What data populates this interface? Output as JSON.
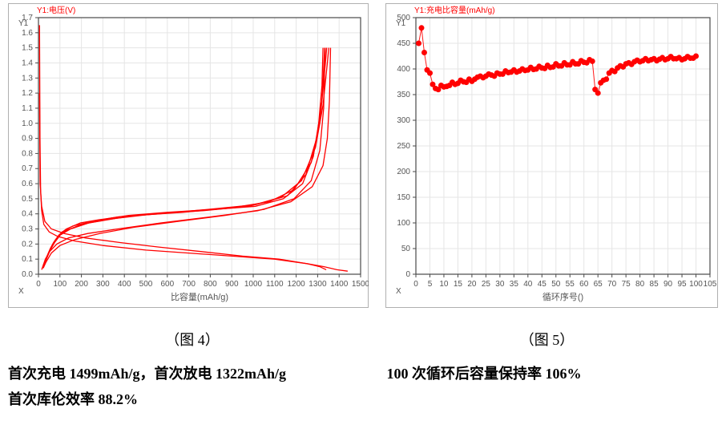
{
  "chart_left": {
    "type": "line",
    "legend_label": "Y1:电压(V)",
    "legend_color": "#ff0000",
    "y_inner_label": "Y1",
    "x_inner_label": "X",
    "x_axis_title": "比容量(mAh/g)",
    "title_fontsize": 11,
    "colors": {
      "line": "#ff0000",
      "grid": "#e5e5e5",
      "axis": "#4a4a4a",
      "tick_label": "#555555",
      "bg": "#ffffff",
      "border": "#b0b0b0"
    },
    "xlim": [
      0,
      1500
    ],
    "xtick_step": 100,
    "ylim": [
      0.0,
      1.7
    ],
    "ytick_step": 0.1,
    "line_width": 1.3,
    "curves": [
      [
        [
          5,
          1.65
        ],
        [
          7,
          0.9
        ],
        [
          10,
          0.55
        ],
        [
          15,
          0.42
        ],
        [
          25,
          0.33
        ],
        [
          50,
          0.28
        ],
        [
          90,
          0.25
        ],
        [
          170,
          0.22
        ],
        [
          300,
          0.19
        ],
        [
          500,
          0.16
        ],
        [
          700,
          0.14
        ],
        [
          900,
          0.12
        ],
        [
          1100,
          0.1
        ],
        [
          1250,
          0.07
        ],
        [
          1330,
          0.05
        ],
        [
          1390,
          0.03
        ],
        [
          1440,
          0.02
        ]
      ],
      [
        [
          5,
          1.2
        ],
        [
          8,
          0.6
        ],
        [
          15,
          0.45
        ],
        [
          30,
          0.35
        ],
        [
          60,
          0.3
        ],
        [
          120,
          0.27
        ],
        [
          220,
          0.24
        ],
        [
          380,
          0.21
        ],
        [
          560,
          0.18
        ],
        [
          760,
          0.15
        ],
        [
          950,
          0.12
        ],
        [
          1120,
          0.1
        ],
        [
          1250,
          0.07
        ],
        [
          1310,
          0.05
        ],
        [
          1340,
          0.03
        ]
      ],
      [
        [
          15,
          0.03
        ],
        [
          25,
          0.07
        ],
        [
          40,
          0.12
        ],
        [
          55,
          0.17
        ],
        [
          70,
          0.21
        ],
        [
          95,
          0.26
        ],
        [
          130,
          0.3
        ],
        [
          195,
          0.34
        ],
        [
          280,
          0.36
        ],
        [
          420,
          0.39
        ],
        [
          600,
          0.41
        ],
        [
          820,
          0.43
        ],
        [
          1010,
          0.45
        ],
        [
          1140,
          0.5
        ],
        [
          1230,
          0.6
        ],
        [
          1280,
          0.78
        ],
        [
          1305,
          1.0
        ],
        [
          1320,
          1.25
        ],
        [
          1325,
          1.5
        ]
      ],
      [
        [
          18,
          0.04
        ],
        [
          30,
          0.08
        ],
        [
          45,
          0.13
        ],
        [
          60,
          0.18
        ],
        [
          80,
          0.23
        ],
        [
          110,
          0.28
        ],
        [
          160,
          0.32
        ],
        [
          250,
          0.35
        ],
        [
          370,
          0.38
        ],
        [
          560,
          0.4
        ],
        [
          790,
          0.43
        ],
        [
          1010,
          0.46
        ],
        [
          1160,
          0.52
        ],
        [
          1245,
          0.66
        ],
        [
          1295,
          0.9
        ],
        [
          1320,
          1.15
        ],
        [
          1333,
          1.5
        ]
      ],
      [
        [
          22,
          0.05
        ],
        [
          35,
          0.1
        ],
        [
          50,
          0.15
        ],
        [
          68,
          0.2
        ],
        [
          92,
          0.25
        ],
        [
          130,
          0.29
        ],
        [
          200,
          0.33
        ],
        [
          310,
          0.36
        ],
        [
          460,
          0.39
        ],
        [
          670,
          0.41
        ],
        [
          900,
          0.44
        ],
        [
          1075,
          0.48
        ],
        [
          1190,
          0.56
        ],
        [
          1270,
          0.74
        ],
        [
          1310,
          1.0
        ],
        [
          1330,
          1.3
        ],
        [
          1342,
          1.5
        ]
      ],
      [
        [
          26,
          0.06
        ],
        [
          40,
          0.11
        ],
        [
          55,
          0.16
        ],
        [
          75,
          0.21
        ],
        [
          102,
          0.26
        ],
        [
          150,
          0.3
        ],
        [
          235,
          0.34
        ],
        [
          360,
          0.37
        ],
        [
          540,
          0.4
        ],
        [
          760,
          0.42
        ],
        [
          980,
          0.45
        ],
        [
          1130,
          0.51
        ],
        [
          1225,
          0.62
        ],
        [
          1290,
          0.84
        ],
        [
          1325,
          1.12
        ],
        [
          1345,
          1.4
        ],
        [
          1352,
          1.5
        ]
      ],
      [
        [
          1360,
          1.5
        ],
        [
          1355,
          1.15
        ],
        [
          1345,
          0.9
        ],
        [
          1325,
          0.72
        ],
        [
          1275,
          0.58
        ],
        [
          1175,
          0.48
        ],
        [
          1020,
          0.42
        ],
        [
          800,
          0.38
        ],
        [
          570,
          0.34
        ],
        [
          370,
          0.3
        ],
        [
          230,
          0.27
        ],
        [
          140,
          0.24
        ],
        [
          85,
          0.2
        ],
        [
          52,
          0.15
        ],
        [
          32,
          0.1
        ],
        [
          20,
          0.05
        ]
      ],
      [
        [
          1335,
          1.5
        ],
        [
          1328,
          1.1
        ],
        [
          1310,
          0.82
        ],
        [
          1270,
          0.62
        ],
        [
          1190,
          0.5
        ],
        [
          1050,
          0.43
        ],
        [
          870,
          0.39
        ],
        [
          650,
          0.35
        ],
        [
          440,
          0.31
        ],
        [
          285,
          0.27
        ],
        [
          170,
          0.23
        ],
        [
          100,
          0.19
        ],
        [
          60,
          0.14
        ],
        [
          35,
          0.08
        ],
        [
          22,
          0.04
        ]
      ]
    ]
  },
  "chart_right": {
    "type": "scatter",
    "legend_label": "Y1:充电比容量(mAh/g)",
    "legend_color": "#ff0000",
    "y_inner_label": "Y1",
    "x_inner_label": "X",
    "x_axis_title": "循环序号()",
    "title_fontsize": 11,
    "colors": {
      "marker": "#ff0000",
      "grid": "#e5e5e5",
      "axis": "#4a4a4a",
      "tick_label": "#555555",
      "bg": "#ffffff",
      "border": "#b0b0b0"
    },
    "marker_radius": 3.5,
    "connect_line_width": 1.0,
    "xlim": [
      0,
      105
    ],
    "xtick_step": 5,
    "ylim": [
      0,
      500
    ],
    "ytick_step": 50,
    "points": [
      [
        1,
        450
      ],
      [
        2,
        480
      ],
      [
        3,
        432
      ],
      [
        4,
        398
      ],
      [
        5,
        392
      ],
      [
        6,
        370
      ],
      [
        7,
        362
      ],
      [
        8,
        360
      ],
      [
        9,
        368
      ],
      [
        10,
        365
      ],
      [
        11,
        366
      ],
      [
        12,
        368
      ],
      [
        13,
        374
      ],
      [
        14,
        370
      ],
      [
        15,
        372
      ],
      [
        16,
        378
      ],
      [
        17,
        375
      ],
      [
        18,
        374
      ],
      [
        19,
        380
      ],
      [
        20,
        376
      ],
      [
        21,
        380
      ],
      [
        22,
        384
      ],
      [
        23,
        386
      ],
      [
        24,
        383
      ],
      [
        25,
        386
      ],
      [
        26,
        390
      ],
      [
        27,
        388
      ],
      [
        28,
        386
      ],
      [
        29,
        392
      ],
      [
        30,
        390
      ],
      [
        31,
        390
      ],
      [
        32,
        396
      ],
      [
        33,
        393
      ],
      [
        34,
        394
      ],
      [
        35,
        398
      ],
      [
        36,
        394
      ],
      [
        37,
        396
      ],
      [
        38,
        400
      ],
      [
        39,
        397
      ],
      [
        40,
        398
      ],
      [
        41,
        403
      ],
      [
        42,
        399
      ],
      [
        43,
        400
      ],
      [
        44,
        405
      ],
      [
        45,
        402
      ],
      [
        46,
        401
      ],
      [
        47,
        407
      ],
      [
        48,
        403
      ],
      [
        49,
        404
      ],
      [
        50,
        410
      ],
      [
        51,
        406
      ],
      [
        52,
        406
      ],
      [
        53,
        412
      ],
      [
        54,
        408
      ],
      [
        55,
        408
      ],
      [
        56,
        414
      ],
      [
        57,
        410
      ],
      [
        58,
        410
      ],
      [
        59,
        416
      ],
      [
        60,
        413
      ],
      [
        61,
        412
      ],
      [
        62,
        418
      ],
      [
        63,
        415
      ],
      [
        64,
        360
      ],
      [
        65,
        353
      ],
      [
        66,
        373
      ],
      [
        67,
        378
      ],
      [
        68,
        380
      ],
      [
        69,
        392
      ],
      [
        70,
        397
      ],
      [
        71,
        395
      ],
      [
        72,
        402
      ],
      [
        73,
        406
      ],
      [
        74,
        404
      ],
      [
        75,
        410
      ],
      [
        76,
        412
      ],
      [
        77,
        409
      ],
      [
        78,
        414
      ],
      [
        79,
        417
      ],
      [
        80,
        414
      ],
      [
        81,
        416
      ],
      [
        82,
        420
      ],
      [
        83,
        416
      ],
      [
        84,
        418
      ],
      [
        85,
        420
      ],
      [
        86,
        416
      ],
      [
        87,
        419
      ],
      [
        88,
        422
      ],
      [
        89,
        418
      ],
      [
        90,
        420
      ],
      [
        91,
        424
      ],
      [
        92,
        420
      ],
      [
        93,
        420
      ],
      [
        94,
        422
      ],
      [
        95,
        418
      ],
      [
        96,
        420
      ],
      [
        97,
        424
      ],
      [
        98,
        421
      ],
      [
        99,
        421
      ],
      [
        100,
        425
      ]
    ]
  },
  "captions": {
    "left": "（图 4）",
    "right": "（图 5）"
  },
  "desc_left_line1": "首次充电 1499mAh/g，首次放电 1322mAh/g",
  "desc_left_line2": "首次库伦效率 88.2%",
  "desc_right": "100 次循环后容量保持率 106%"
}
